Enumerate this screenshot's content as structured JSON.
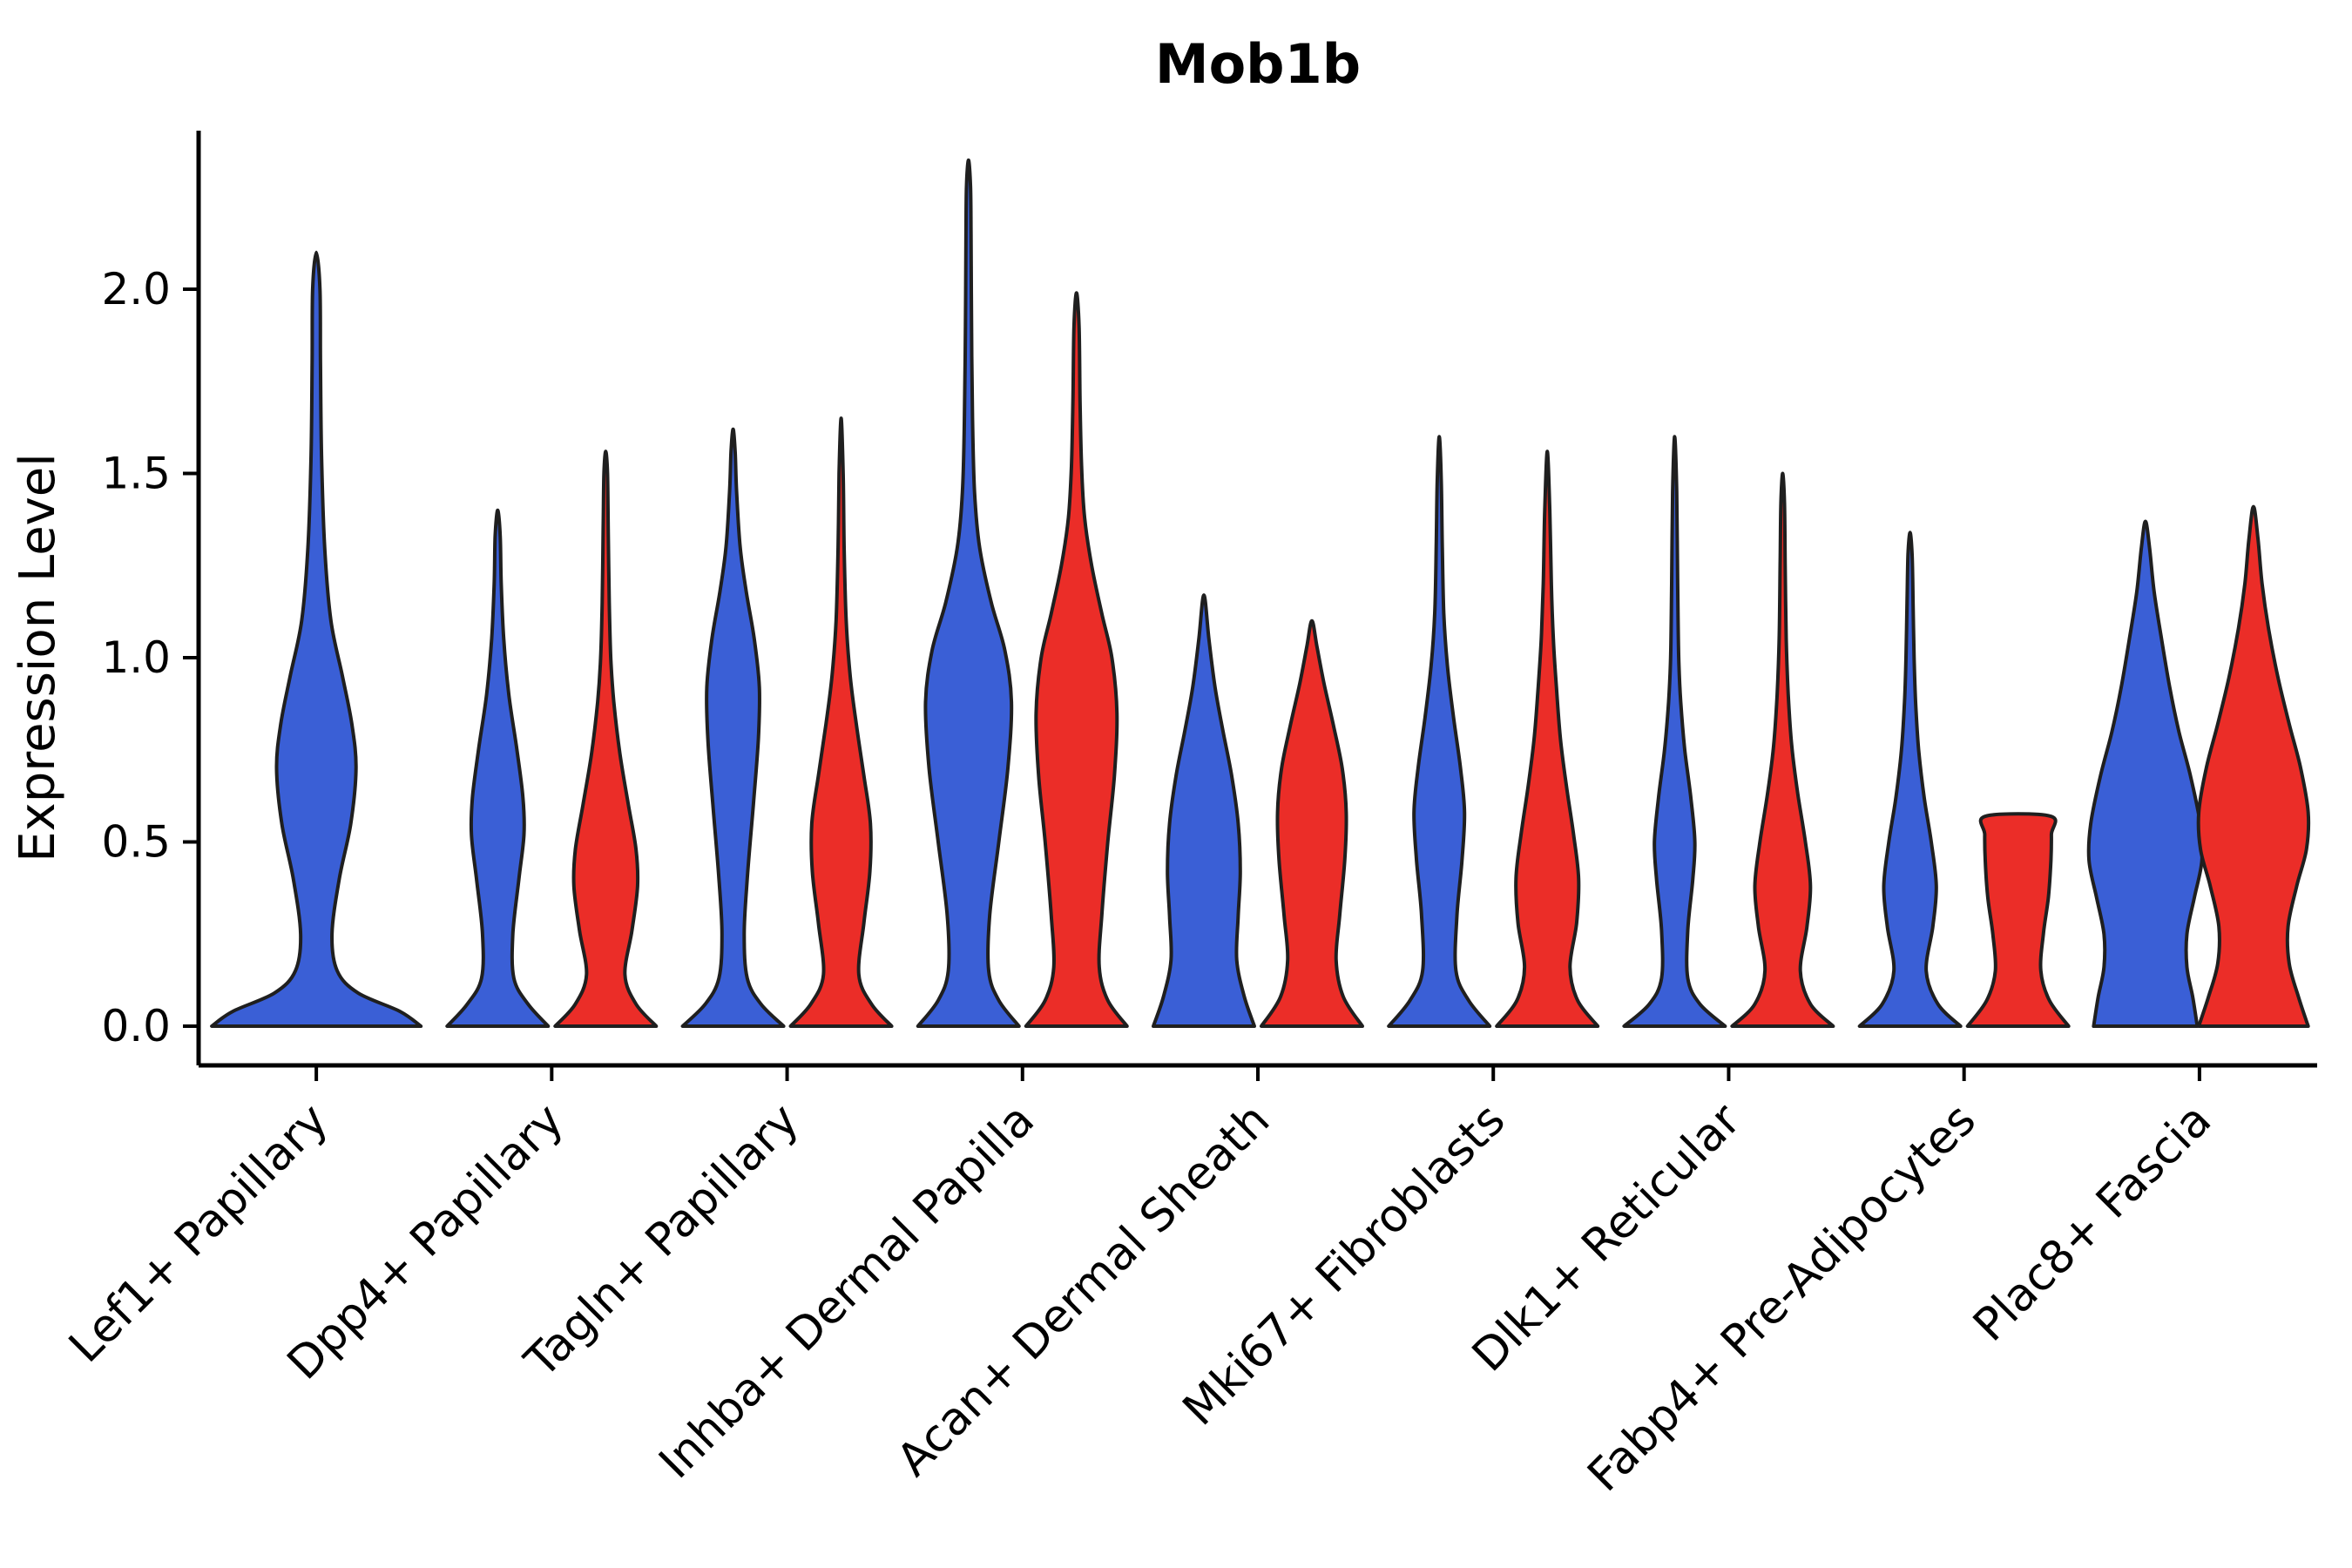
{
  "chart_data": {
    "type": "violin",
    "title": "Mob1b",
    "ylabel": "Expression Level",
    "xlabel": "",
    "ylim": [
      0,
      2.45
    ],
    "yticks": [
      0.0,
      0.5,
      1.0,
      1.5,
      2.0
    ],
    "grid": false,
    "legend_position": "none",
    "categories": [
      "Lef1+ Papillary",
      "Dpp4+ Papillary",
      "Tagln+ Papillary",
      "Inhba+ Dermal Papilla",
      "Acan+ Dermal Sheath",
      "Mki67+ Fibroblasts",
      "Dlk1+ Reticular",
      "Fabp4+ Pre-Adipocytes",
      "Plac8+ Fascia"
    ],
    "series_colors": {
      "blue": "#3A5FD6",
      "red": "#EB2D28"
    },
    "outline_color": "#1f1f1f",
    "violins": [
      {
        "category_index": 0,
        "color": "blue",
        "side": 0,
        "width_scale": 2.07,
        "max": 2.1,
        "profile": [
          [
            0,
            1.0
          ],
          [
            0.04,
            0.8
          ],
          [
            0.09,
            0.4
          ],
          [
            0.15,
            0.2
          ],
          [
            0.25,
            0.15
          ],
          [
            0.4,
            0.22
          ],
          [
            0.55,
            0.33
          ],
          [
            0.7,
            0.38
          ],
          [
            0.82,
            0.34
          ],
          [
            0.95,
            0.25
          ],
          [
            1.1,
            0.14
          ],
          [
            1.3,
            0.08
          ],
          [
            1.55,
            0.05
          ],
          [
            1.8,
            0.04
          ],
          [
            2.0,
            0.035
          ],
          [
            2.1,
            0
          ]
        ]
      },
      {
        "category_index": 1,
        "color": "blue",
        "side": -1,
        "width_scale": 1.0,
        "max": 1.4,
        "profile": [
          [
            0,
            1
          ],
          [
            0.06,
            0.6
          ],
          [
            0.13,
            0.32
          ],
          [
            0.25,
            0.3
          ],
          [
            0.4,
            0.42
          ],
          [
            0.52,
            0.52
          ],
          [
            0.62,
            0.5
          ],
          [
            0.75,
            0.38
          ],
          [
            0.9,
            0.22
          ],
          [
            1.05,
            0.12
          ],
          [
            1.2,
            0.07
          ],
          [
            1.33,
            0.05
          ],
          [
            1.4,
            0
          ]
        ]
      },
      {
        "category_index": 1,
        "color": "red",
        "side": 1,
        "width_scale": 1.0,
        "max": 1.56,
        "profile": [
          [
            0,
            1
          ],
          [
            0.06,
            0.6
          ],
          [
            0.14,
            0.38
          ],
          [
            0.26,
            0.52
          ],
          [
            0.38,
            0.63
          ],
          [
            0.48,
            0.6
          ],
          [
            0.6,
            0.45
          ],
          [
            0.74,
            0.28
          ],
          [
            0.88,
            0.16
          ],
          [
            1.0,
            0.1
          ],
          [
            1.15,
            0.07
          ],
          [
            1.35,
            0.05
          ],
          [
            1.5,
            0.035
          ],
          [
            1.56,
            0
          ]
        ]
      },
      {
        "category_index": 2,
        "color": "blue",
        "side": -1,
        "width_scale": 1.0,
        "max": 1.62,
        "profile": [
          [
            0,
            1
          ],
          [
            0.06,
            0.55
          ],
          [
            0.13,
            0.28
          ],
          [
            0.25,
            0.22
          ],
          [
            0.4,
            0.28
          ],
          [
            0.6,
            0.4
          ],
          [
            0.78,
            0.5
          ],
          [
            0.92,
            0.52
          ],
          [
            1.05,
            0.42
          ],
          [
            1.18,
            0.26
          ],
          [
            1.3,
            0.14
          ],
          [
            1.45,
            0.07
          ],
          [
            1.56,
            0.04
          ],
          [
            1.62,
            0
          ]
        ]
      },
      {
        "category_index": 2,
        "color": "red",
        "side": 1,
        "width_scale": 1.0,
        "max": 1.65,
        "profile": [
          [
            0,
            1
          ],
          [
            0.06,
            0.6
          ],
          [
            0.14,
            0.35
          ],
          [
            0.28,
            0.45
          ],
          [
            0.42,
            0.57
          ],
          [
            0.55,
            0.58
          ],
          [
            0.68,
            0.45
          ],
          [
            0.82,
            0.3
          ],
          [
            0.95,
            0.18
          ],
          [
            1.1,
            0.1
          ],
          [
            1.3,
            0.06
          ],
          [
            1.5,
            0.04
          ],
          [
            1.65,
            0
          ]
        ]
      },
      {
        "category_index": 3,
        "color": "blue",
        "side": -1,
        "width_scale": 1.0,
        "max": 2.35,
        "profile": [
          [
            0,
            1
          ],
          [
            0.07,
            0.6
          ],
          [
            0.15,
            0.4
          ],
          [
            0.3,
            0.42
          ],
          [
            0.5,
            0.6
          ],
          [
            0.7,
            0.78
          ],
          [
            0.88,
            0.85
          ],
          [
            1.02,
            0.72
          ],
          [
            1.15,
            0.45
          ],
          [
            1.3,
            0.22
          ],
          [
            1.45,
            0.12
          ],
          [
            1.65,
            0.08
          ],
          [
            1.9,
            0.06
          ],
          [
            2.15,
            0.05
          ],
          [
            2.28,
            0.04
          ],
          [
            2.35,
            0
          ]
        ]
      },
      {
        "category_index": 3,
        "color": "red",
        "side": 1,
        "width_scale": 1.0,
        "max": 1.99,
        "profile": [
          [
            0,
            1
          ],
          [
            0.07,
            0.62
          ],
          [
            0.16,
            0.45
          ],
          [
            0.3,
            0.5
          ],
          [
            0.5,
            0.62
          ],
          [
            0.68,
            0.75
          ],
          [
            0.85,
            0.8
          ],
          [
            1.0,
            0.7
          ],
          [
            1.12,
            0.5
          ],
          [
            1.25,
            0.3
          ],
          [
            1.38,
            0.16
          ],
          [
            1.52,
            0.1
          ],
          [
            1.7,
            0.07
          ],
          [
            1.9,
            0.05
          ],
          [
            1.99,
            0
          ]
        ]
      },
      {
        "category_index": 4,
        "color": "blue",
        "side": -1,
        "width_scale": 1.0,
        "max": 1.17,
        "profile": [
          [
            0,
            1
          ],
          [
            0.08,
            0.8
          ],
          [
            0.18,
            0.65
          ],
          [
            0.3,
            0.68
          ],
          [
            0.42,
            0.72
          ],
          [
            0.55,
            0.68
          ],
          [
            0.68,
            0.55
          ],
          [
            0.8,
            0.38
          ],
          [
            0.92,
            0.22
          ],
          [
            1.05,
            0.1
          ],
          [
            1.17,
            0
          ]
        ]
      },
      {
        "category_index": 4,
        "color": "red",
        "side": 1,
        "width_scale": 1.0,
        "max": 1.1,
        "profile": [
          [
            0,
            1
          ],
          [
            0.08,
            0.62
          ],
          [
            0.18,
            0.48
          ],
          [
            0.3,
            0.55
          ],
          [
            0.45,
            0.65
          ],
          [
            0.58,
            0.68
          ],
          [
            0.7,
            0.6
          ],
          [
            0.82,
            0.42
          ],
          [
            0.93,
            0.24
          ],
          [
            1.03,
            0.1
          ],
          [
            1.1,
            0
          ]
        ]
      },
      {
        "category_index": 5,
        "color": "blue",
        "side": -1,
        "width_scale": 1.0,
        "max": 1.6,
        "profile": [
          [
            0,
            1
          ],
          [
            0.07,
            0.58
          ],
          [
            0.15,
            0.33
          ],
          [
            0.3,
            0.35
          ],
          [
            0.45,
            0.45
          ],
          [
            0.58,
            0.5
          ],
          [
            0.7,
            0.42
          ],
          [
            0.84,
            0.28
          ],
          [
            0.98,
            0.16
          ],
          [
            1.12,
            0.09
          ],
          [
            1.3,
            0.06
          ],
          [
            1.48,
            0.04
          ],
          [
            1.6,
            0
          ]
        ]
      },
      {
        "category_index": 5,
        "color": "red",
        "side": 1,
        "width_scale": 1.0,
        "max": 1.56,
        "profile": [
          [
            0,
            1
          ],
          [
            0.07,
            0.6
          ],
          [
            0.16,
            0.45
          ],
          [
            0.28,
            0.58
          ],
          [
            0.4,
            0.62
          ],
          [
            0.52,
            0.52
          ],
          [
            0.65,
            0.38
          ],
          [
            0.78,
            0.26
          ],
          [
            0.92,
            0.18
          ],
          [
            1.05,
            0.12
          ],
          [
            1.2,
            0.08
          ],
          [
            1.4,
            0.05
          ],
          [
            1.56,
            0
          ]
        ]
      },
      {
        "category_index": 6,
        "color": "blue",
        "side": -1,
        "width_scale": 1.0,
        "max": 1.6,
        "profile": [
          [
            0,
            1
          ],
          [
            0.06,
            0.5
          ],
          [
            0.13,
            0.26
          ],
          [
            0.26,
            0.26
          ],
          [
            0.4,
            0.36
          ],
          [
            0.5,
            0.4
          ],
          [
            0.62,
            0.32
          ],
          [
            0.75,
            0.2
          ],
          [
            0.88,
            0.12
          ],
          [
            1.0,
            0.08
          ],
          [
            1.2,
            0.06
          ],
          [
            1.45,
            0.04
          ],
          [
            1.6,
            0
          ]
        ]
      },
      {
        "category_index": 6,
        "color": "red",
        "side": 1,
        "width_scale": 1.0,
        "max": 1.5,
        "profile": [
          [
            0,
            1
          ],
          [
            0.06,
            0.55
          ],
          [
            0.15,
            0.35
          ],
          [
            0.27,
            0.48
          ],
          [
            0.38,
            0.55
          ],
          [
            0.5,
            0.45
          ],
          [
            0.63,
            0.3
          ],
          [
            0.76,
            0.18
          ],
          [
            0.9,
            0.11
          ],
          [
            1.05,
            0.07
          ],
          [
            1.25,
            0.05
          ],
          [
            1.42,
            0.035
          ],
          [
            1.5,
            0
          ]
        ]
      },
      {
        "category_index": 7,
        "color": "blue",
        "side": -1,
        "width_scale": 1.0,
        "max": 1.34,
        "profile": [
          [
            0,
            1
          ],
          [
            0.06,
            0.55
          ],
          [
            0.15,
            0.32
          ],
          [
            0.27,
            0.45
          ],
          [
            0.38,
            0.52
          ],
          [
            0.5,
            0.42
          ],
          [
            0.62,
            0.28
          ],
          [
            0.75,
            0.17
          ],
          [
            0.88,
            0.11
          ],
          [
            1.0,
            0.08
          ],
          [
            1.15,
            0.06
          ],
          [
            1.28,
            0.04
          ],
          [
            1.34,
            0
          ]
        ]
      },
      {
        "category_index": 7,
        "color": "red",
        "side": 1,
        "width_scale": 1.0,
        "max": 0.57,
        "flat_top": true,
        "profile": [
          [
            0,
            1
          ],
          [
            0.07,
            0.62
          ],
          [
            0.15,
            0.45
          ],
          [
            0.25,
            0.5
          ],
          [
            0.35,
            0.6
          ],
          [
            0.45,
            0.65
          ],
          [
            0.52,
            0.66
          ],
          [
            0.57,
            0.64
          ]
        ]
      },
      {
        "category_index": 8,
        "color": "blue",
        "side": -1,
        "width_scale": 1.14,
        "max": 1.37,
        "profile": [
          [
            0,
            0.9
          ],
          [
            0.08,
            0.82
          ],
          [
            0.16,
            0.72
          ],
          [
            0.25,
            0.72
          ],
          [
            0.35,
            0.85
          ],
          [
            0.45,
            0.98
          ],
          [
            0.55,
            0.95
          ],
          [
            0.68,
            0.78
          ],
          [
            0.8,
            0.58
          ],
          [
            0.92,
            0.42
          ],
          [
            1.05,
            0.28
          ],
          [
            1.18,
            0.15
          ],
          [
            1.3,
            0.07
          ],
          [
            1.37,
            0
          ]
        ]
      },
      {
        "category_index": 8,
        "color": "red",
        "side": 1,
        "width_scale": 1.14,
        "max": 1.41,
        "profile": [
          [
            0,
            0.95
          ],
          [
            0.08,
            0.78
          ],
          [
            0.17,
            0.62
          ],
          [
            0.27,
            0.6
          ],
          [
            0.38,
            0.75
          ],
          [
            0.48,
            0.92
          ],
          [
            0.58,
            0.95
          ],
          [
            0.7,
            0.82
          ],
          [
            0.82,
            0.62
          ],
          [
            0.95,
            0.42
          ],
          [
            1.08,
            0.26
          ],
          [
            1.2,
            0.15
          ],
          [
            1.32,
            0.08
          ],
          [
            1.41,
            0
          ]
        ]
      }
    ]
  }
}
